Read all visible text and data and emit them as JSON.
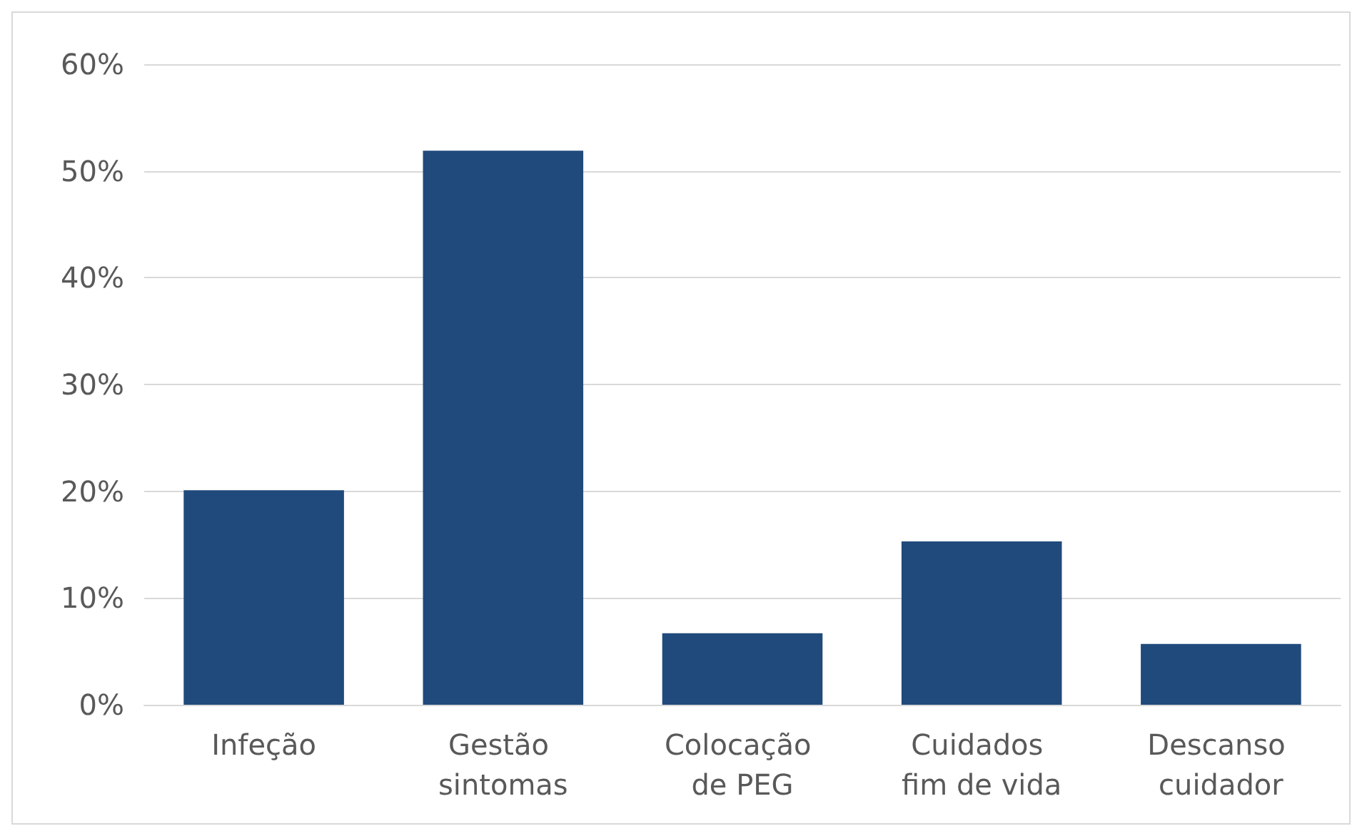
{
  "chart_data": {
    "type": "bar",
    "categories": [
      "Infeção",
      "Gestão sintomas",
      "Colocação de PEG",
      "Cuidados fim de vida",
      "Descanso cuidador"
    ],
    "values": [
      20.1,
      51.9,
      6.7,
      15.3,
      5.7
    ],
    "color": "#204a7c",
    "ylim": [
      0,
      60
    ],
    "yticks": [
      {
        "value": 0,
        "label": "0%"
      },
      {
        "value": 10,
        "label": "10%"
      },
      {
        "value": 20,
        "label": "20%"
      },
      {
        "value": 30,
        "label": "30%"
      },
      {
        "value": 40,
        "label": "40%"
      },
      {
        "value": 50,
        "label": "50%"
      },
      {
        "value": 60,
        "label": "60%"
      }
    ],
    "grid": "y"
  }
}
